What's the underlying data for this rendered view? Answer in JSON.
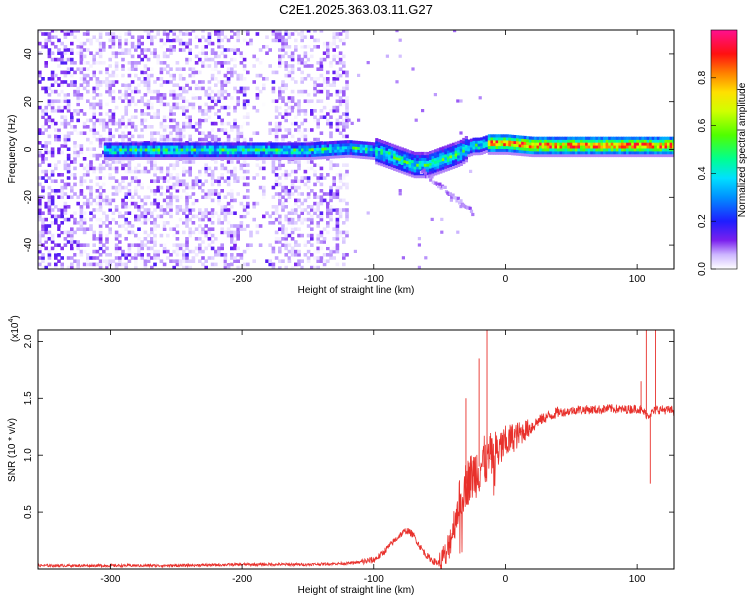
{
  "figure_title": "C2E1.2025.363.03.11.G27",
  "colors": {
    "snr_line": "#e8302b",
    "frame": "#000000",
    "background": "#ffffff"
  },
  "chart_data": [
    {
      "type": "heatmap",
      "name": "spectrogram",
      "title": "C2E1.2025.363.03.11.G27",
      "xlabel": "Height of straight line (km)",
      "ylabel": "Frequency (Hz)",
      "xlim": [
        -355,
        128
      ],
      "ylim": [
        -50,
        50
      ],
      "xticks": [
        -300,
        -200,
        -100,
        0,
        100
      ],
      "yticks": [
        -40,
        -20,
        0,
        20,
        40
      ],
      "x_tick_labels": [
        "-300",
        "-200",
        "-100",
        "0",
        "100"
      ],
      "y_tick_labels": [
        "-40",
        "-20",
        "0",
        "20",
        "40"
      ],
      "colorbar": {
        "label": "Normalized spectral amplitude",
        "range": [
          0,
          1
        ],
        "ticks": [
          0,
          0.2,
          0.4,
          0.6,
          0.8
        ],
        "tick_labels": [
          "0.0",
          "0.2",
          "0.4",
          "0.6",
          "0.8"
        ]
      },
      "ridge": {
        "description": "dominant Doppler frequency vs height",
        "x": [
          -305,
          -250,
          -200,
          -150,
          -120,
          -100,
          -90,
          -80,
          -70,
          -60,
          -50,
          -40,
          -35,
          -30,
          -25,
          -20,
          -15,
          -10,
          0,
          20,
          50,
          80,
          100,
          128
        ],
        "y": [
          -1,
          -1,
          -1,
          -1,
          0,
          -1,
          -3,
          -5,
          -7,
          -7,
          -5,
          -3,
          -2,
          0,
          1,
          1,
          2,
          2,
          2,
          1,
          1,
          1,
          1,
          1
        ]
      },
      "noise_region_x": [
        -355,
        -120
      ]
    },
    {
      "type": "line",
      "name": "snr",
      "xlabel": "Height of straight line (km)",
      "ylabel": "SNR (10 * v/v)",
      "y_scale_note": "(x10^4)",
      "scale_base": "(x10",
      "scale_exponent": "4",
      "scale_close": ")",
      "xlim": [
        -355,
        128
      ],
      "ylim": [
        0,
        2.1
      ],
      "xticks": [
        -300,
        -200,
        -100,
        0,
        100
      ],
      "yticks": [
        0.5,
        1.0,
        1.5,
        2.0
      ],
      "x_tick_labels": [
        "-300",
        "-200",
        "-100",
        "0",
        "100"
      ],
      "y_tick_labels": [
        "0.5",
        "1.0",
        "1.5",
        "2.0"
      ],
      "series": [
        {
          "name": "SNR",
          "x": [
            -355,
            -300,
            -250,
            -200,
            -150,
            -120,
            -110,
            -100,
            -95,
            -90,
            -85,
            -80,
            -75,
            -70,
            -65,
            -60,
            -55,
            -50,
            -45,
            -40,
            -35,
            -30,
            -25,
            -20,
            -15,
            -10,
            -5,
            0,
            5,
            10,
            15,
            20,
            25,
            30,
            35,
            40,
            45,
            50,
            55,
            60,
            70,
            80,
            90,
            100,
            105,
            108,
            112,
            115,
            120,
            128
          ],
          "y": [
            0.03,
            0.03,
            0.03,
            0.04,
            0.04,
            0.05,
            0.06,
            0.08,
            0.12,
            0.18,
            0.24,
            0.3,
            0.34,
            0.3,
            0.2,
            0.12,
            0.07,
            0.05,
            0.12,
            0.35,
            0.6,
            0.75,
            0.82,
            0.9,
            0.95,
            1.0,
            1.05,
            1.1,
            1.15,
            1.18,
            1.22,
            1.25,
            1.3,
            1.33,
            1.35,
            1.38,
            1.38,
            1.39,
            1.4,
            1.4,
            1.4,
            1.41,
            1.4,
            1.41,
            1.38,
            1.35,
            1.38,
            1.4,
            1.4,
            1.39
          ]
        }
      ],
      "spikes": [
        {
          "x": -30,
          "y": 1.5
        },
        {
          "x": -20,
          "y": 1.85
        },
        {
          "x": -14,
          "y": 2.1
        },
        {
          "x": 103,
          "y": 1.65
        },
        {
          "x": 107,
          "y": 2.1
        },
        {
          "x": 114,
          "y": 2.1
        },
        {
          "x": 110,
          "y": 0.75
        }
      ]
    }
  ]
}
